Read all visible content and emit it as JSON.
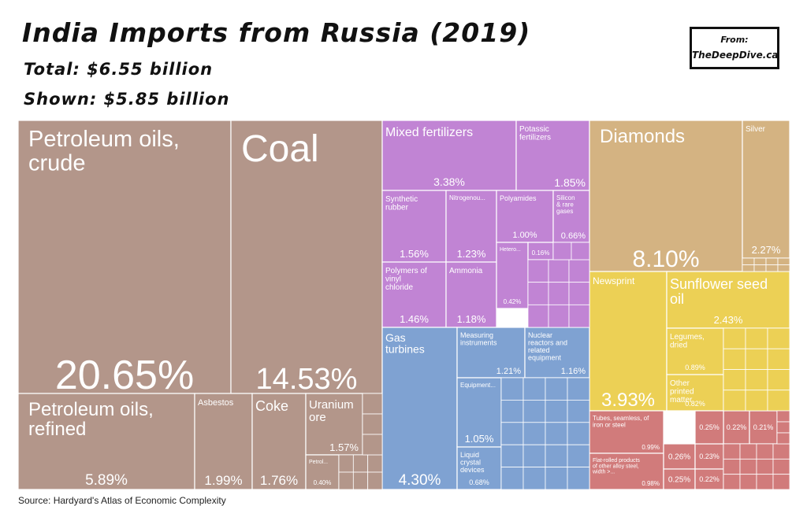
{
  "header": {
    "title": "India Imports from Russia (2019)",
    "total": "Total: $6.55 billion",
    "shown": "Shown: $5.85 billion"
  },
  "credit": {
    "from_label": "From:",
    "site": "TheDeepDive.ca"
  },
  "source": "Source: Hardyard's Atlas of Economic Complexity",
  "colors": {
    "minerals": "#b3968a",
    "chemicals": "#c184d4",
    "machinery": "#7fa2d2",
    "precious": "#d4b382",
    "paper_food": "#ecd055",
    "metals": "#d17b7b"
  },
  "chart_data": {
    "type": "treemap",
    "title": "India Imports from Russia (2019)",
    "unit": "% of total imports",
    "items": [
      {
        "label": "Petroleum oils, crude",
        "value": 20.65,
        "group": "minerals"
      },
      {
        "label": "Coal",
        "value": 14.53,
        "group": "minerals"
      },
      {
        "label": "Petroleum oils, refined",
        "value": 5.89,
        "group": "minerals"
      },
      {
        "label": "Asbestos",
        "value": 1.99,
        "group": "minerals"
      },
      {
        "label": "Coke",
        "value": 1.76,
        "group": "minerals"
      },
      {
        "label": "Uranium ore",
        "value": 1.57,
        "group": "minerals"
      },
      {
        "label": "Petrol...",
        "value": 0.4,
        "group": "minerals"
      },
      {
        "label": "Mixed fertilizers",
        "value": 3.38,
        "group": "chemicals"
      },
      {
        "label": "Potassic fertilizers",
        "value": 1.85,
        "group": "chemicals"
      },
      {
        "label": "Synthetic rubber",
        "value": 1.56,
        "group": "chemicals"
      },
      {
        "label": "Nitrogenou...",
        "value": 1.23,
        "group": "chemicals"
      },
      {
        "label": "Polyamides",
        "value": 1.0,
        "group": "chemicals"
      },
      {
        "label": "Silicon & rare gases",
        "value": 0.66,
        "group": "chemicals"
      },
      {
        "label": "Polymers of vinyl chloride",
        "value": 1.46,
        "group": "chemicals"
      },
      {
        "label": "Ammonia",
        "value": 1.18,
        "group": "chemicals"
      },
      {
        "label": "Hetero...",
        "value": 0.42,
        "group": "chemicals"
      },
      {
        "label": "",
        "value": 0.16,
        "group": "chemicals"
      },
      {
        "label": "Gas turbines",
        "value": 4.3,
        "group": "machinery"
      },
      {
        "label": "Measuring instruments",
        "value": 1.21,
        "group": "machinery"
      },
      {
        "label": "Nuclear reactors and related equipment",
        "value": 1.16,
        "group": "machinery"
      },
      {
        "label": "Equipment...",
        "value": 1.05,
        "group": "machinery"
      },
      {
        "label": "Liquid crystal devices",
        "value": 0.68,
        "group": "machinery"
      },
      {
        "label": "Diamonds",
        "value": 8.1,
        "group": "precious"
      },
      {
        "label": "Silver",
        "value": 2.27,
        "group": "precious"
      },
      {
        "label": "Newsprint",
        "value": 3.93,
        "group": "paper_food"
      },
      {
        "label": "Sunflower seed oil",
        "value": 2.43,
        "group": "paper_food"
      },
      {
        "label": "Legumes, dried",
        "value": 0.89,
        "group": "paper_food"
      },
      {
        "label": "Other printed matter",
        "value": 0.82,
        "group": "paper_food"
      },
      {
        "label": "Tubes, seamless, of iron or steel",
        "value": 0.99,
        "group": "metals"
      },
      {
        "label": "Flat-rolled products of other alloy steel, width >...",
        "value": 0.98,
        "group": "metals"
      },
      {
        "label": "",
        "value": 0.26,
        "group": "metals"
      },
      {
        "label": "",
        "value": 0.25,
        "group": "metals"
      },
      {
        "label": "",
        "value": 0.23,
        "group": "metals"
      },
      {
        "label": "",
        "value": 0.22,
        "group": "metals"
      },
      {
        "label": "",
        "value": 0.21,
        "group": "metals"
      },
      {
        "label": "",
        "value": 0.25,
        "group": "metals"
      },
      {
        "label": "",
        "value": 0.22,
        "group": "metals"
      }
    ]
  }
}
